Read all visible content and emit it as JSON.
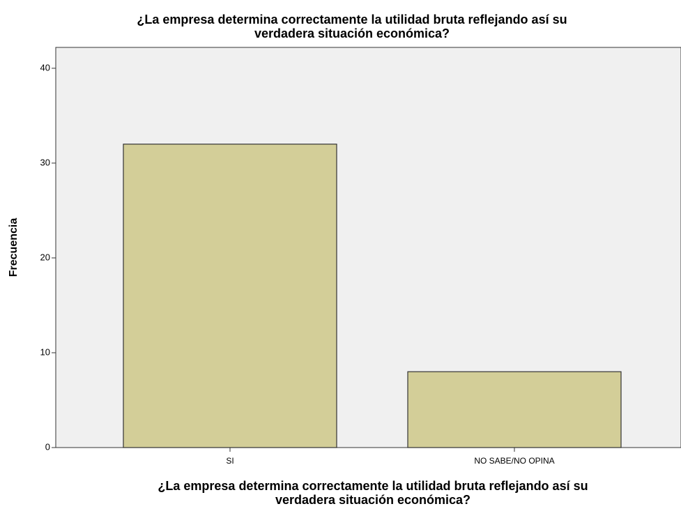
{
  "chart_data": {
    "type": "bar",
    "title": [
      "¿La empresa determina correctamente la utilidad bruta reflejando así su",
      "verdadera situación económica?"
    ],
    "x_label": [
      "¿La empresa determina correctamente la utilidad bruta reflejando así su",
      "verdadera situación económica?"
    ],
    "y_label": "Frecuencia",
    "categories": [
      "SI",
      "NO SABE/NO OPINA"
    ],
    "values": [
      32,
      8
    ],
    "color": "#d3ce98",
    "ylim": [
      0,
      42.2
    ],
    "yticks": [
      0,
      10,
      20,
      30,
      40
    ],
    "grid": false
  }
}
